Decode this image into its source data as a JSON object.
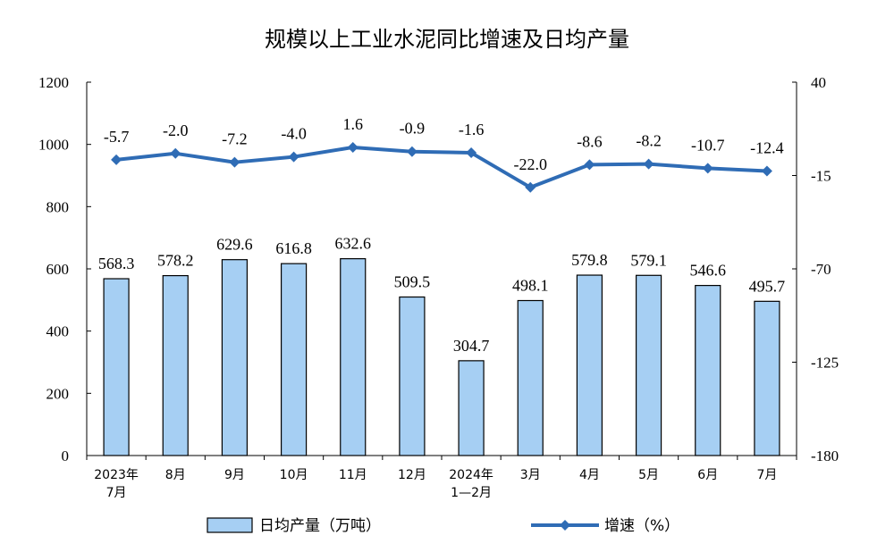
{
  "chart_data": {
    "type": "bar+line",
    "title": "规模以上工业水泥同比增速及日均产量",
    "categories": [
      [
        "2023年",
        "7月"
      ],
      [
        "8月"
      ],
      [
        "9月"
      ],
      [
        "10月"
      ],
      [
        "11月"
      ],
      [
        "12月"
      ],
      [
        "2024年",
        "1—2月"
      ],
      [
        "3月"
      ],
      [
        "4月"
      ],
      [
        "5月"
      ],
      [
        "6月"
      ],
      [
        "7月"
      ]
    ],
    "series": [
      {
        "name": "日均产量（万吨）",
        "type": "bar",
        "axis": "left",
        "color": "#a6cff3",
        "values": [
          568.3,
          578.2,
          629.6,
          616.8,
          632.6,
          509.5,
          304.7,
          498.1,
          579.8,
          579.1,
          546.6,
          495.7
        ],
        "labels": [
          "568.3",
          "578.2",
          "629.6",
          "616.8",
          "632.6",
          "509.5",
          "304.7",
          "498.1",
          "579.8",
          "579.1",
          "546.6",
          "495.7"
        ]
      },
      {
        "name": "增速（%）",
        "type": "line",
        "axis": "right",
        "color": "#2f6cb5",
        "values": [
          -5.7,
          -2.0,
          -7.2,
          -4.0,
          1.6,
          -0.9,
          -1.6,
          -22.0,
          -8.6,
          -8.2,
          -10.7,
          -12.4
        ],
        "labels": [
          "-5.7",
          "-2.0",
          "-7.2",
          "-4.0",
          "1.6",
          "-0.9",
          "-1.6",
          "-22.0",
          "-8.6",
          "-8.2",
          "-10.7",
          "-12.4"
        ]
      }
    ],
    "y_left": {
      "range": [
        0,
        1200
      ],
      "ticks": [
        0,
        200,
        400,
        600,
        800,
        1000,
        1200
      ],
      "tick_labels": [
        "0",
        "200",
        "400",
        "600",
        "800",
        "1000",
        "1200"
      ]
    },
    "y_right": {
      "range": [
        -180,
        40
      ],
      "ticks": [
        -180,
        -125,
        -70,
        -15,
        40
      ],
      "tick_labels": [
        "-180",
        "-125",
        "-70",
        "-15",
        "40"
      ]
    },
    "grid": false,
    "legend": "bottom"
  }
}
